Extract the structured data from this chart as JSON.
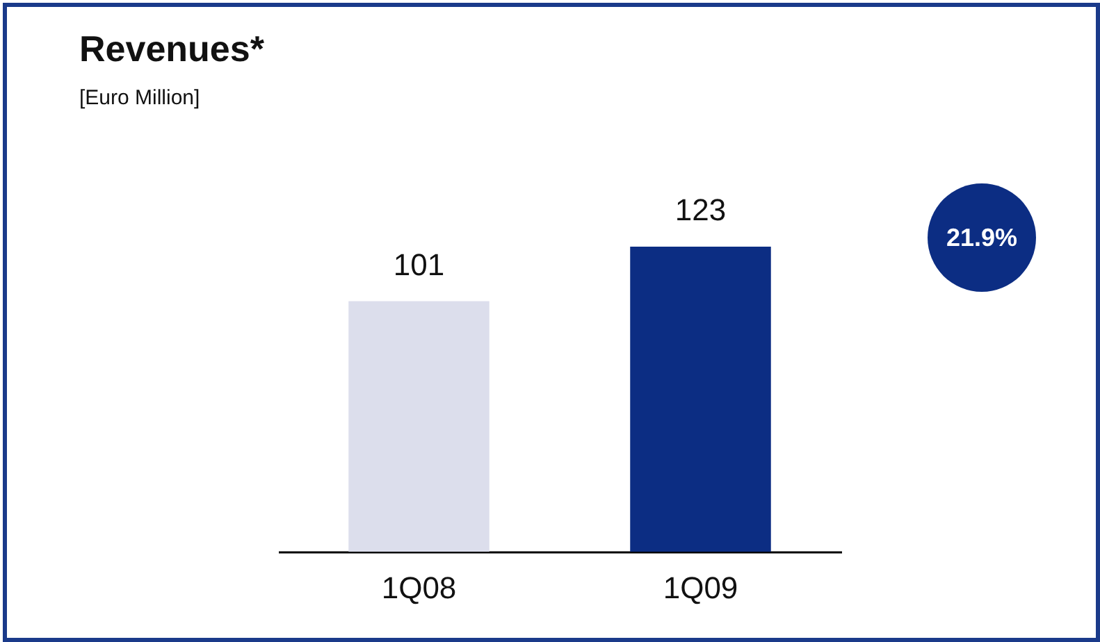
{
  "chart_data": {
    "type": "bar",
    "title": "Revenues*",
    "subtitle": "[Euro Million]",
    "categories": [
      "1Q08",
      "1Q09"
    ],
    "values": [
      101,
      123
    ],
    "colors": [
      "#dcdeec",
      "#0c2d83"
    ],
    "data_labels": true,
    "annotations": [
      "21.9%"
    ]
  }
}
